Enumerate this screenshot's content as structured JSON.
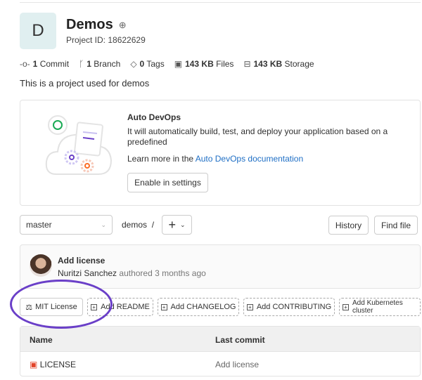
{
  "project": {
    "initial": "D",
    "name": "Demos",
    "visibility_icon": "globe-icon",
    "id_label": "Project ID: 18622629",
    "description": "This is a project used for demos"
  },
  "stats": [
    {
      "icon": "commit-icon",
      "count": "1",
      "label": "Commit"
    },
    {
      "icon": "branch-icon",
      "count": "1",
      "label": "Branch"
    },
    {
      "icon": "tag-icon",
      "count": "0",
      "label": "Tags"
    },
    {
      "icon": "file-icon",
      "count": "143 KB",
      "label": "Files"
    },
    {
      "icon": "storage-icon",
      "count": "143 KB",
      "label": "Storage"
    }
  ],
  "devops": {
    "title": "Auto DevOps",
    "description": "It will automatically build, test, and deploy your application based on a predefined",
    "learn_prefix": "Learn more in the",
    "learn_link": "Auto DevOps documentation",
    "enable_button": "Enable in settings"
  },
  "repo": {
    "branch": "master",
    "path": "demos",
    "separator": "/",
    "add_button": "+",
    "history_button": "History",
    "find_file_button": "Find file"
  },
  "last_commit": {
    "title": "Add license",
    "author": "Nuritzi Sanchez",
    "meta": "authored 3 months ago"
  },
  "quick_actions": [
    {
      "label": "MIT License",
      "icon": "scale-icon",
      "dashed": false
    },
    {
      "label": "Add README",
      "icon": "plus-square-icon",
      "dashed": true
    },
    {
      "label": "Add CHANGELOG",
      "icon": "plus-square-icon",
      "dashed": true
    },
    {
      "label": "Add CONTRIBUTING",
      "icon": "plus-square-icon",
      "dashed": true
    },
    {
      "label": "Add Kubernetes cluster",
      "icon": "plus-square-icon",
      "dashed": true
    }
  ],
  "files_table": {
    "columns": [
      "Name",
      "Last commit"
    ],
    "rows": [
      {
        "name": "LICENSE",
        "last_commit": "Add license",
        "icon": "license-icon"
      }
    ]
  },
  "colors": {
    "highlight_circle": "#6a3fc8",
    "link": "#1f6fc5",
    "avatar_bg": "#e0eff0"
  }
}
